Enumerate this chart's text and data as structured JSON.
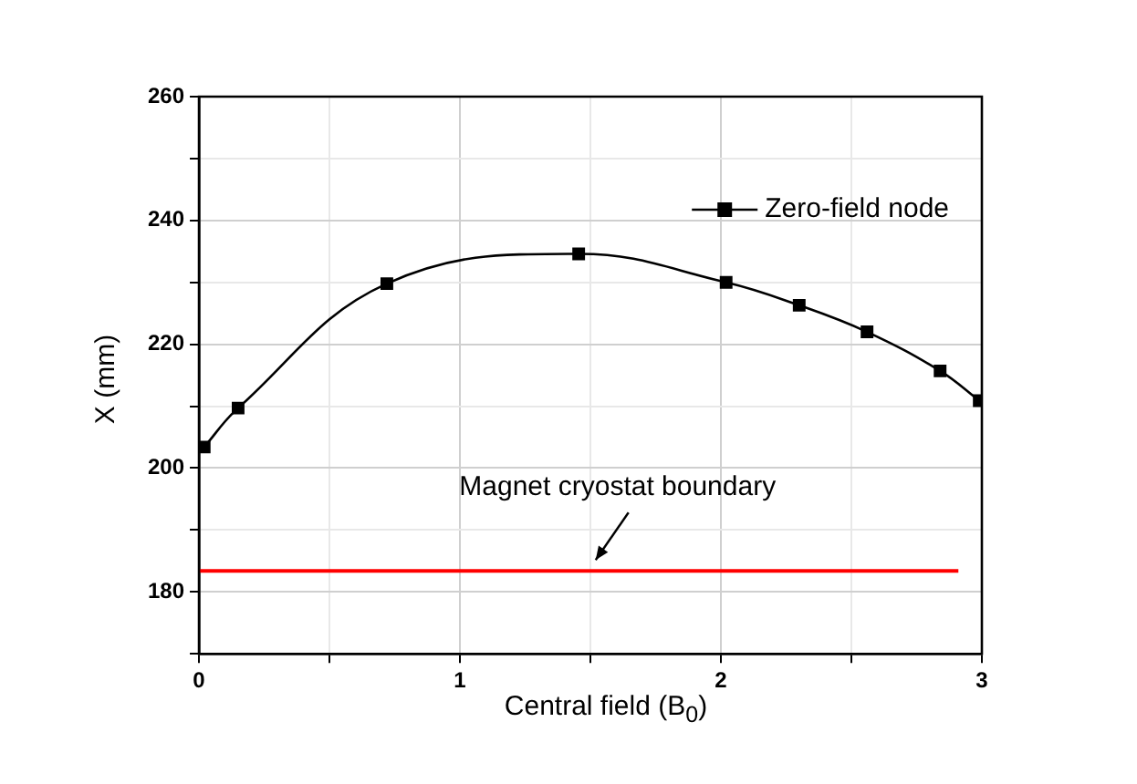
{
  "chart_data": {
    "type": "line",
    "xlabel": "Central field (B$_{0}$)",
    "ylabel": "X (mm)",
    "xlim": [
      0,
      3
    ],
    "xticks": [
      0,
      {
        "value": 0.5,
        "label": null
      },
      1,
      {
        "value": 1.5,
        "label": null
      },
      2,
      {
        "value": 2.5,
        "label": null
      },
      3
    ],
    "ylim": [
      170,
      260
    ],
    "yticks": [
      {
        "value": 170,
        "label": null
      },
      180,
      {
        "value": 190,
        "label": null
      },
      200,
      {
        "value": 210,
        "label": null
      },
      220,
      {
        "value": 230,
        "label": null
      },
      240,
      {
        "value": 250,
        "label": null
      },
      260
    ],
    "grid": true,
    "legend": "top right",
    "series": [
      {
        "name": "Zero-field node",
        "color": "#000000",
        "marker": "square",
        "x": [
          0.02,
          0.15,
          0.72,
          1.455,
          2.02,
          2.3,
          2.56,
          2.84,
          2.99
        ],
        "values": [
          203.4,
          209.7,
          229.8,
          234.6,
          230.0,
          226.3,
          222.0,
          215.7,
          210.9
        ]
      },
      {
        "color": "#ff0000",
        "marker": "none",
        "x": [
          0,
          2.91
        ],
        "values": [
          183.4,
          183.4
        ]
      }
    ],
    "annotations": [
      {
        "text": "Magnet cryostat boundary",
        "x": 1.52,
        "y": 183.4
      }
    ]
  }
}
